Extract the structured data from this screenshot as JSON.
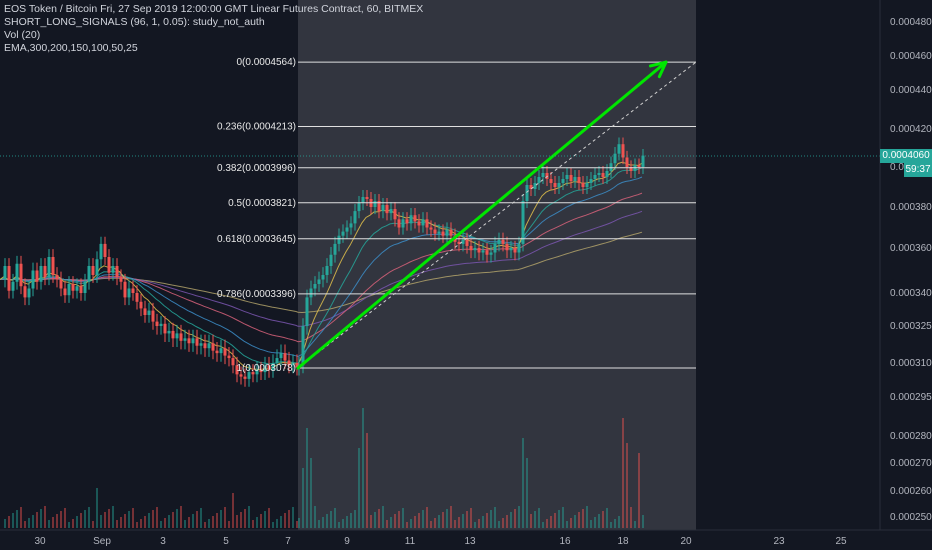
{
  "legend": {
    "title_line": "EOS Token / Bitcoin Fri, 27 Sep 2019 12:00:00 GMT Linear Futures Contract, 60, BITMEX",
    "indicator1": "SHORT_LONG_SIGNALS (96, 1, 0.05): study_not_auth",
    "indicator2": "Vol (20)",
    "indicator3": "EMA,300,200,150,100,50,25"
  },
  "price_axis": {
    "ticks": [
      "0.0004800",
      "0.0004600",
      "0.0004400",
      "0.0004200",
      "0.0004000",
      "0.0003800",
      "0.0003600",
      "0.0003400",
      "0.0003250",
      "0.0003100",
      "0.0002950",
      "0.0002800",
      "0.0002700",
      "0.0002600",
      "0.0002500"
    ]
  },
  "time_axis": {
    "ticks": [
      "30",
      "Sep",
      "3",
      "5",
      "7",
      "9",
      "11",
      "13",
      "16",
      "18",
      "20",
      "23",
      "25"
    ]
  },
  "current_price": {
    "value": "0.0004060",
    "countdown": "59:37",
    "color": "#26a69a"
  },
  "chart_data": {
    "type": "candlestick",
    "symbol": "EOS Token / Bitcoin",
    "interval": "60",
    "exchange": "BITMEX",
    "price_range": [
      0.00025,
      0.00049
    ],
    "fibonacci_levels": [
      {
        "label": "0(0.0004564)",
        "ratio": 0,
        "price": 0.0004564
      },
      {
        "label": "0.236(0.0004213)",
        "ratio": 0.236,
        "price": 0.0004213
      },
      {
        "label": "0.382(0.0003996)",
        "ratio": 0.382,
        "price": 0.0003996
      },
      {
        "label": "0.5(0.0003821)",
        "ratio": 0.5,
        "price": 0.0003821
      },
      {
        "label": "0.618(0.0003645)",
        "ratio": 0.618,
        "price": 0.0003645
      },
      {
        "label": "0.786(0.0003396)",
        "ratio": 0.786,
        "price": 0.0003396
      },
      {
        "label": "1(0.0003078)",
        "ratio": 1,
        "price": 0.0003078
      }
    ],
    "price_path": [
      [
        0,
        0.000346
      ],
      [
        4,
        0.000352
      ],
      [
        8,
        0.000341
      ],
      [
        12,
        0.000345
      ],
      [
        16,
        0.000353
      ],
      [
        20,
        0.000343
      ],
      [
        24,
        0.000338
      ],
      [
        28,
        0.000342
      ],
      [
        32,
        0.00035
      ],
      [
        36,
        0.000345
      ],
      [
        40,
        0.000352
      ],
      [
        44,
        0.000347
      ],
      [
        48,
        0.000356
      ],
      [
        52,
        0.000348
      ],
      [
        56,
        0.000346
      ],
      [
        60,
        0.000342
      ],
      [
        64,
        0.000339
      ],
      [
        68,
        0.000344
      ],
      [
        72,
        0.000341
      ],
      [
        76,
        0.000343
      ],
      [
        80,
        0.00034
      ],
      [
        84,
        0.000345
      ],
      [
        88,
        0.000352
      ],
      [
        92,
        0.000348
      ],
      [
        96,
        0.000355
      ],
      [
        100,
        0.000362
      ],
      [
        104,
        0.000356
      ],
      [
        108,
        0.000349
      ],
      [
        112,
        0.000352
      ],
      [
        116,
        0.000347
      ],
      [
        120,
        0.000345
      ],
      [
        124,
        0.000338
      ],
      [
        128,
        0.000342
      ],
      [
        132,
        0.00034
      ],
      [
        136,
        0.000336
      ],
      [
        140,
        0.000333
      ],
      [
        144,
        0.00033
      ],
      [
        148,
        0.000332
      ],
      [
        152,
        0.000327
      ],
      [
        156,
        0.000325
      ],
      [
        160,
        0.000326
      ],
      [
        164,
        0.000322
      ],
      [
        168,
        0.000323
      ],
      [
        172,
        0.00032
      ],
      [
        176,
        0.000322
      ],
      [
        180,
        0.000319
      ],
      [
        184,
        0.00032
      ],
      [
        188,
        0.000318
      ],
      [
        192,
        0.00032
      ],
      [
        196,
        0.000317
      ],
      [
        200,
        0.000318
      ],
      [
        204,
        0.000316
      ],
      [
        208,
        0.000318
      ],
      [
        212,
        0.000315
      ],
      [
        216,
        0.000314
      ],
      [
        220,
        0.000316
      ],
      [
        224,
        0.000313
      ],
      [
        228,
        0.000312
      ],
      [
        232,
        0.000309
      ],
      [
        236,
        0.000305
      ],
      [
        240,
        0.000304
      ],
      [
        244,
        0.000303
      ],
      [
        248,
        0.000306
      ],
      [
        252,
        0.000305
      ],
      [
        256,
        0.000307
      ],
      [
        260,
        0.000306
      ],
      [
        264,
        0.000309
      ],
      [
        268,
        0.000307
      ],
      [
        272,
        0.00031
      ],
      [
        276,
        0.000312
      ],
      [
        280,
        0.000314
      ],
      [
        284,
        0.000311
      ],
      [
        288,
        0.000309
      ],
      [
        292,
        0.00031
      ],
      [
        296,
        0.000308
      ],
      [
        298,
        0.000309
      ],
      [
        302,
        0.000325
      ],
      [
        306,
        0.000338
      ],
      [
        310,
        0.000342
      ],
      [
        314,
        0.000344
      ],
      [
        318,
        0.000346
      ],
      [
        322,
        0.000348
      ],
      [
        326,
        0.000352
      ],
      [
        330,
        0.000357
      ],
      [
        334,
        0.000362
      ],
      [
        338,
        0.000366
      ],
      [
        342,
        0.000368
      ],
      [
        346,
        0.00037
      ],
      [
        350,
        0.000372
      ],
      [
        354,
        0.000378
      ],
      [
        358,
        0.000382
      ],
      [
        362,
        0.000385
      ],
      [
        366,
        0.000384
      ],
      [
        370,
        0.00038
      ],
      [
        374,
        0.000383
      ],
      [
        378,
        0.000378
      ],
      [
        382,
        0.000381
      ],
      [
        386,
        0.000377
      ],
      [
        390,
        0.000379
      ],
      [
        394,
        0.000374
      ],
      [
        398,
        0.00037
      ],
      [
        402,
        0.000374
      ],
      [
        406,
        0.000372
      ],
      [
        410,
        0.000376
      ],
      [
        414,
        0.000373
      ],
      [
        418,
        0.000371
      ],
      [
        422,
        0.000374
      ],
      [
        426,
        0.00037
      ],
      [
        430,
        0.000369
      ],
      [
        434,
        0.000367
      ],
      [
        438,
        0.000368
      ],
      [
        442,
        0.000366
      ],
      [
        446,
        0.000369
      ],
      [
        450,
        0.000366
      ],
      [
        454,
        0.000363
      ],
      [
        458,
        0.000362
      ],
      [
        462,
        0.000364
      ],
      [
        466,
        0.000361
      ],
      [
        470,
        0.000359
      ],
      [
        474,
        0.00036
      ],
      [
        478,
        0.000358
      ],
      [
        482,
        0.000359
      ],
      [
        486,
        0.000357
      ],
      [
        490,
        0.000358
      ],
      [
        494,
        0.000362
      ],
      [
        498,
        0.000364
      ],
      [
        502,
        0.000362
      ],
      [
        506,
        0.000359
      ],
      [
        510,
        0.00036
      ],
      [
        514,
        0.000358
      ],
      [
        518,
        0.000362
      ],
      [
        522,
        0.000383
      ],
      [
        526,
        0.000391
      ],
      [
        530,
        0.000389
      ],
      [
        534,
        0.000392
      ],
      [
        538,
        0.000395
      ],
      [
        542,
        0.000397
      ],
      [
        546,
        0.000394
      ],
      [
        550,
        0.000392
      ],
      [
        554,
        0.00039
      ],
      [
        558,
        0.000392
      ],
      [
        562,
        0.000394
      ],
      [
        566,
        0.000396
      ],
      [
        570,
        0.000393
      ],
      [
        574,
        0.000395
      ],
      [
        578,
        0.000392
      ],
      [
        582,
        0.00039
      ],
      [
        586,
        0.000392
      ],
      [
        590,
        0.000394
      ],
      [
        594,
        0.000396
      ],
      [
        598,
        0.000397
      ],
      [
        602,
        0.000395
      ],
      [
        606,
        0.000398
      ],
      [
        610,
        0.000402
      ],
      [
        614,
        0.000407
      ],
      [
        618,
        0.000412
      ],
      [
        622,
        0.000405
      ],
      [
        626,
        0.0004
      ],
      [
        630,
        0.000398
      ],
      [
        634,
        0.000401
      ],
      [
        638,
        0.0004
      ],
      [
        642,
        0.000406
      ]
    ],
    "trend_arrow": {
      "from_price": 0.0003078,
      "to_price": 0.0004564,
      "color": "#00e600"
    },
    "ema_colors": [
      "#b2a26a",
      "#7b56b0",
      "#d8627a",
      "#3c8dc8",
      "#26a69a",
      "#e0c04b"
    ]
  },
  "colors": {
    "background": "#131722",
    "up_candle": "#26a69a",
    "down_candle": "#ef5350",
    "fib_line": "#e0e0e0",
    "fib_fill": "#3e4049"
  }
}
